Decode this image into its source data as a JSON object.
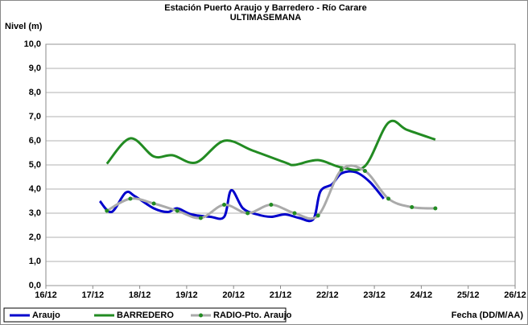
{
  "chart_data": {
    "type": "line",
    "title": "Estación Puerto Araujo y Barredero - Río Carare",
    "subtitle": "ULTIMASEMANA",
    "y_label": "Nivel (m)",
    "x_label": "Fecha (DD/M/AA)",
    "xlim": [
      16,
      26
    ],
    "xticks": [
      {
        "value": 16,
        "label": "16/12"
      },
      {
        "value": 17,
        "label": "17/12"
      },
      {
        "value": 18,
        "label": "18/12"
      },
      {
        "value": 19,
        "label": "19/12"
      },
      {
        "value": 20,
        "label": "20/12"
      },
      {
        "value": 21,
        "label": "21/12"
      },
      {
        "value": 22,
        "label": "22/12"
      },
      {
        "value": 23,
        "label": "23/12"
      },
      {
        "value": 24,
        "label": "24/12"
      },
      {
        "value": 25,
        "label": "25/12"
      },
      {
        "value": 26,
        "label": "26/12"
      }
    ],
    "ylim": [
      0,
      10
    ],
    "yticks": [
      {
        "value": 0,
        "label": "0,0"
      },
      {
        "value": 1,
        "label": "1,0"
      },
      {
        "value": 2,
        "label": "2,0"
      },
      {
        "value": 3,
        "label": "3,0"
      },
      {
        "value": 4,
        "label": "4,0"
      },
      {
        "value": 5,
        "label": "5,0"
      },
      {
        "value": 6,
        "label": "6,0"
      },
      {
        "value": 7,
        "label": "7,0"
      },
      {
        "value": 8,
        "label": "8,0"
      },
      {
        "value": 9,
        "label": "9,0"
      },
      {
        "value": 10,
        "label": "10,0"
      }
    ],
    "grid": true,
    "legend": "bottom-left",
    "series": [
      {
        "name": "Araujo",
        "color": "#0000cc",
        "markers": false,
        "x": [
          17.15,
          17.4,
          17.7,
          17.9,
          18.3,
          18.6,
          18.8,
          19.1,
          19.5,
          19.8,
          19.95,
          20.2,
          20.5,
          20.8,
          21.1,
          21.4,
          21.7,
          21.85,
          22.1,
          22.3,
          22.6,
          22.9,
          23.2
        ],
        "values": [
          3.5,
          3.05,
          3.85,
          3.7,
          3.2,
          3.05,
          3.2,
          2.95,
          2.85,
          2.85,
          3.95,
          3.2,
          2.95,
          2.85,
          2.95,
          2.8,
          2.75,
          3.9,
          4.2,
          4.65,
          4.7,
          4.3,
          3.6
        ]
      },
      {
        "name": "BARREDERO",
        "color": "#228b22",
        "markers": false,
        "x": [
          17.3,
          17.8,
          18.3,
          18.7,
          19.2,
          19.8,
          20.4,
          21.1,
          21.3,
          21.8,
          22.3,
          22.8,
          23.3,
          23.7,
          24.3
        ],
        "values": [
          5.05,
          6.1,
          5.35,
          5.4,
          5.1,
          6.0,
          5.6,
          5.1,
          5.0,
          5.2,
          4.9,
          4.95,
          6.75,
          6.45,
          6.05
        ]
      },
      {
        "name": "RADIO-Pto. Araujo",
        "color": "#aaaaaa",
        "marker_color": "#228b22",
        "markers": true,
        "x": [
          17.3,
          17.8,
          18.3,
          18.8,
          19.3,
          19.8,
          20.3,
          20.8,
          21.3,
          21.8,
          22.3,
          22.8,
          23.3,
          23.8,
          24.3
        ],
        "values": [
          3.1,
          3.6,
          3.4,
          3.1,
          2.8,
          3.35,
          3.0,
          3.35,
          3.0,
          2.9,
          4.8,
          4.75,
          3.6,
          3.25,
          3.2
        ]
      }
    ]
  }
}
